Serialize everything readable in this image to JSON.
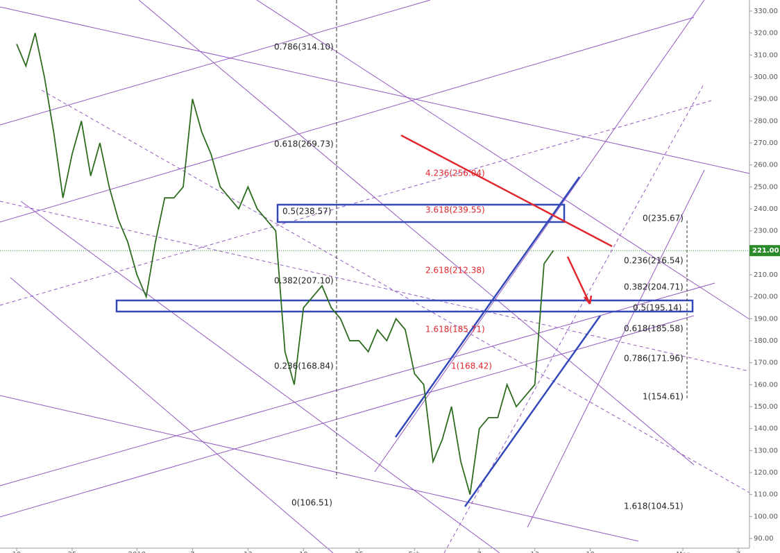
{
  "chart_data": {
    "type": "line",
    "color": "#2d6b1f",
    "x": [
      0,
      1,
      2,
      3,
      4,
      5,
      6,
      7,
      8,
      9,
      10,
      11,
      12,
      13,
      14,
      15,
      16,
      17,
      18,
      19,
      20,
      21,
      22,
      23,
      24,
      25,
      26,
      27,
      28,
      29,
      30,
      31,
      32,
      33,
      34,
      35,
      36,
      37,
      38,
      39,
      40,
      41,
      42,
      43,
      44,
      45,
      46,
      47,
      48,
      49,
      50,
      51,
      52,
      53,
      54,
      55,
      56,
      57,
      58
    ],
    "values": [
      315,
      305,
      320,
      300,
      275,
      245,
      265,
      280,
      255,
      270,
      250,
      235,
      225,
      210,
      200,
      225,
      245,
      245,
      250,
      290,
      275,
      265,
      250,
      245,
      240,
      250,
      240,
      235,
      230,
      175,
      160,
      195,
      200,
      205,
      195,
      190,
      180,
      180,
      175,
      185,
      180,
      190,
      185,
      165,
      160,
      125,
      135,
      150,
      125,
      110,
      140,
      145,
      145,
      160,
      150,
      155,
      160,
      215,
      221
    ],
    "xlim": [
      -1.8,
      79.2
    ],
    "xticks": [
      {
        "value": 0,
        "label": "19"
      },
      {
        "value": 6,
        "label": "25"
      },
      {
        "value": 13,
        "label": "2018"
      },
      {
        "value": 19,
        "label": "7"
      },
      {
        "value": 25,
        "label": "13"
      },
      {
        "value": 31,
        "label": "19"
      },
      {
        "value": 37,
        "label": "25"
      },
      {
        "value": 43,
        "label": "Feb"
      },
      {
        "value": 50,
        "label": "7"
      },
      {
        "value": 56,
        "label": "13"
      },
      {
        "value": 62,
        "label": "19"
      },
      {
        "value": 72,
        "label": "Mar"
      },
      {
        "value": 78,
        "label": "7"
      }
    ],
    "ylim": [
      85.6,
      335.05
    ],
    "yticks": [
      {
        "value": 90,
        "label": "90.00"
      },
      {
        "value": 100,
        "label": "100.00"
      },
      {
        "value": 110,
        "label": "110.00"
      },
      {
        "value": 120,
        "label": "120.00"
      },
      {
        "value": 130,
        "label": "130.00"
      },
      {
        "value": 140,
        "label": "140.00"
      },
      {
        "value": 150,
        "label": "150.00"
      },
      {
        "value": 160,
        "label": "160.00"
      },
      {
        "value": 170,
        "label": "170.00"
      },
      {
        "value": 180,
        "label": "180.00"
      },
      {
        "value": 190,
        "label": "190.00"
      },
      {
        "value": 200,
        "label": "200.00"
      },
      {
        "value": 210,
        "label": "210.00"
      },
      {
        "value": 220,
        "label": "220.00"
      },
      {
        "value": 230,
        "label": "230.00"
      },
      {
        "value": 240,
        "label": "240.00"
      },
      {
        "value": 250,
        "label": "250.00"
      },
      {
        "value": 260,
        "label": "260.00"
      },
      {
        "value": 270,
        "label": "270.00"
      },
      {
        "value": 280,
        "label": "280.00"
      },
      {
        "value": 290,
        "label": "290.00"
      },
      {
        "value": 300,
        "label": "300.00"
      },
      {
        "value": 310,
        "label": "310.00"
      },
      {
        "value": 320,
        "label": "320.00"
      },
      {
        "value": 330,
        "label": "330.00"
      }
    ],
    "grid": false,
    "current_price": {
      "value": 221,
      "label": "221.00"
    },
    "annotations": [
      "0.786(314.10)",
      "0.618(269.73)",
      "4.236(256.04)",
      "0.5(238.57)",
      "3.618(239.55)",
      "0(235.67)",
      "2.618(212.38)",
      "0.236(216.54)",
      "0.382(207.10)",
      "0.382(204.71)",
      "0.5(195.14)",
      "1.618(185.71)",
      "0.618(185.58)",
      "0.236(168.84)",
      "1(168.42)",
      "0.786(171.96)",
      "1(154.61)",
      "0(106.51)",
      "1.618(104.51)"
    ]
  }
}
